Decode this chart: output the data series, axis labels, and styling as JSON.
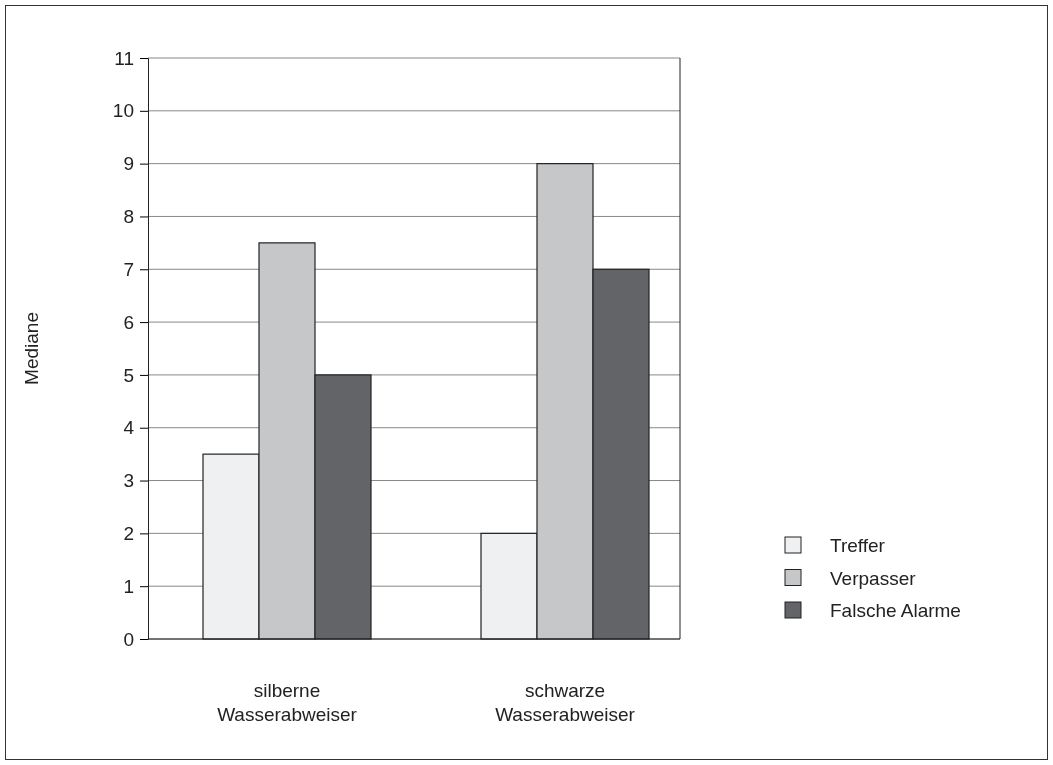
{
  "chart_data": {
    "type": "bar",
    "ylabel": "Mediane",
    "categories": [
      "silberne Wasserabweiser",
      "schwarze Wasserabweiser"
    ],
    "series": [
      {
        "name": "Treffer",
        "color": "#eff0f2",
        "values": [
          3.5,
          2
        ]
      },
      {
        "name": "Verpasser",
        "color": "#c6c7c9",
        "values": [
          7.5,
          9
        ]
      },
      {
        "name": "Falsche Alarme",
        "color": "#636467",
        "values": [
          5,
          7
        ]
      }
    ],
    "ylim": [
      0,
      11
    ],
    "yticks": [
      0,
      1,
      2,
      3,
      4,
      5,
      6,
      7,
      8,
      9,
      10,
      11
    ],
    "grid": "y",
    "legend": "right"
  }
}
